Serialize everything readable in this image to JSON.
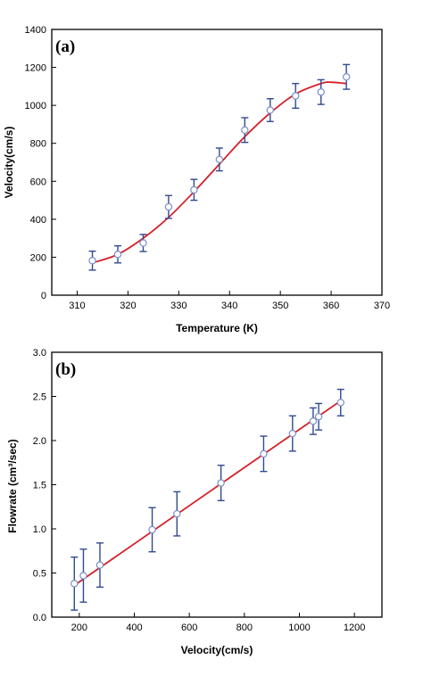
{
  "chart_data": [
    {
      "type": "scatter",
      "panel_label": "(a)",
      "xlabel": "Temperature (K)",
      "ylabel": "Velocity(cm/s)",
      "xlim": [
        305,
        370
      ],
      "ylim": [
        0,
        1400
      ],
      "xticks": [
        310,
        320,
        330,
        340,
        350,
        360,
        370
      ],
      "yticks": [
        0,
        200,
        400,
        600,
        800,
        1000,
        1200,
        1400
      ],
      "points": [
        {
          "x": 313,
          "y": 182,
          "err": 50
        },
        {
          "x": 318,
          "y": 215,
          "err": 45
        },
        {
          "x": 323,
          "y": 275,
          "err": 45
        },
        {
          "x": 328,
          "y": 465,
          "err": 60
        },
        {
          "x": 333,
          "y": 555,
          "err": 55
        },
        {
          "x": 338,
          "y": 715,
          "err": 60
        },
        {
          "x": 343,
          "y": 870,
          "err": 65
        },
        {
          "x": 348,
          "y": 975,
          "err": 60
        },
        {
          "x": 353,
          "y": 1050,
          "err": 65
        },
        {
          "x": 358,
          "y": 1070,
          "err": 65
        },
        {
          "x": 363,
          "y": 1150,
          "err": 65
        }
      ],
      "fit": {
        "type": "curve",
        "x": [
          313,
          318,
          323,
          328,
          333,
          338,
          343,
          348,
          353,
          358,
          360,
          363
        ],
        "y": [
          170,
          215,
          300,
          410,
          545,
          690,
          835,
          960,
          1060,
          1115,
          1122,
          1115
        ]
      },
      "marker_color": "#7a8fc8",
      "errorbar_color": "#2f4b8f",
      "fit_color": "#d4202a",
      "grid": false
    },
    {
      "type": "scatter",
      "panel_label": "(b)",
      "xlabel": "Velocity(cm/s)",
      "ylabel": "Flowrate (cm³/sec)",
      "xlim": [
        100,
        1300
      ],
      "ylim": [
        0.0,
        3.0
      ],
      "xticks": [
        200,
        400,
        600,
        800,
        1000,
        1200
      ],
      "yticks": [
        "0.0",
        "0.5",
        "1.0",
        "1.5",
        "2.0",
        "2.5",
        "3.0"
      ],
      "points": [
        {
          "x": 182,
          "y": 0.38,
          "err": 0.3
        },
        {
          "x": 215,
          "y": 0.47,
          "err": 0.3
        },
        {
          "x": 275,
          "y": 0.59,
          "err": 0.25
        },
        {
          "x": 465,
          "y": 0.99,
          "err": 0.25
        },
        {
          "x": 555,
          "y": 1.17,
          "err": 0.25
        },
        {
          "x": 715,
          "y": 1.52,
          "err": 0.2
        },
        {
          "x": 870,
          "y": 1.85,
          "err": 0.2
        },
        {
          "x": 975,
          "y": 2.08,
          "err": 0.2
        },
        {
          "x": 1050,
          "y": 2.22,
          "err": 0.15
        },
        {
          "x": 1070,
          "y": 2.27,
          "err": 0.15
        },
        {
          "x": 1150,
          "y": 2.43,
          "err": 0.15
        }
      ],
      "fit": {
        "type": "line",
        "x": [
          182,
          1150
        ],
        "y": [
          0.36,
          2.45
        ]
      },
      "marker_color": "#7a8fc8",
      "errorbar_color": "#2f4b8f",
      "fit_color": "#d4202a",
      "grid": false
    }
  ]
}
